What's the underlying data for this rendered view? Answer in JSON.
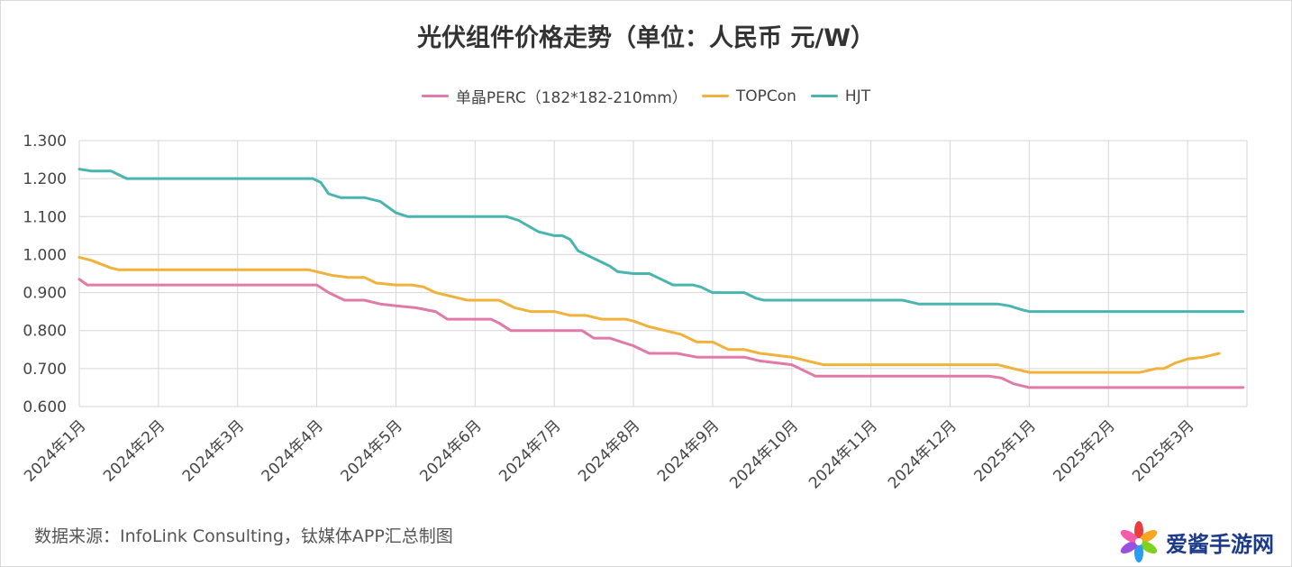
{
  "chart_data": {
    "type": "line",
    "title": "光伏组件价格走势（单位：人民币 元/W）",
    "xlabel": "",
    "ylabel": "",
    "ylim": [
      0.6,
      1.3
    ],
    "yticks": [
      "1.300",
      "1.200",
      "1.100",
      "1.000",
      "0.900",
      "0.800",
      "0.700",
      "0.600"
    ],
    "ytick_values": [
      1.3,
      1.2,
      1.1,
      1.0,
      0.9,
      0.8,
      0.7,
      0.6
    ],
    "categories": [
      "2024年1月",
      "2024年2月",
      "2024年3月",
      "2024年4月",
      "2024年5月",
      "2024年6月",
      "2024年7月",
      "2024年8月",
      "2024年9月",
      "2024年10月",
      "2024年11月",
      "2024年12月",
      "2025年1月",
      "2025年2月",
      "2025年3月"
    ],
    "x_range": [
      0,
      14.75
    ],
    "grid": true,
    "legend_position": "top-center",
    "series": [
      {
        "name": "单晶PERC（182*182-210mm）",
        "color": "#e07aa8",
        "points": [
          [
            0,
            0.935
          ],
          [
            0.1,
            0.92
          ],
          [
            0.3,
            0.92
          ],
          [
            1,
            0.92
          ],
          [
            2,
            0.92
          ],
          [
            2.7,
            0.92
          ],
          [
            3,
            0.92
          ],
          [
            3.15,
            0.9
          ],
          [
            3.35,
            0.88
          ],
          [
            3.6,
            0.88
          ],
          [
            3.8,
            0.87
          ],
          [
            4,
            0.865
          ],
          [
            4.25,
            0.86
          ],
          [
            4.5,
            0.85
          ],
          [
            4.65,
            0.83
          ],
          [
            4.9,
            0.83
          ],
          [
            5,
            0.83
          ],
          [
            5.2,
            0.83
          ],
          [
            5.3,
            0.82
          ],
          [
            5.45,
            0.8
          ],
          [
            6,
            0.8
          ],
          [
            6.35,
            0.8
          ],
          [
            6.5,
            0.78
          ],
          [
            6.7,
            0.78
          ],
          [
            6.85,
            0.77
          ],
          [
            7,
            0.76
          ],
          [
            7.2,
            0.74
          ],
          [
            7.55,
            0.74
          ],
          [
            7.8,
            0.73
          ],
          [
            8,
            0.73
          ],
          [
            8.4,
            0.73
          ],
          [
            8.6,
            0.72
          ],
          [
            9,
            0.71
          ],
          [
            9.3,
            0.68
          ],
          [
            9.5,
            0.68
          ],
          [
            10,
            0.68
          ],
          [
            11,
            0.68
          ],
          [
            11.5,
            0.68
          ],
          [
            11.65,
            0.675
          ],
          [
            11.8,
            0.66
          ],
          [
            12,
            0.65
          ],
          [
            12.2,
            0.65
          ],
          [
            13,
            0.65
          ],
          [
            14,
            0.65
          ],
          [
            14.7,
            0.65
          ]
        ]
      },
      {
        "name": "TOPCon",
        "color": "#f0b23a",
        "points": [
          [
            0,
            0.993
          ],
          [
            0.15,
            0.985
          ],
          [
            0.4,
            0.965
          ],
          [
            0.5,
            0.96
          ],
          [
            1,
            0.96
          ],
          [
            2,
            0.96
          ],
          [
            2.7,
            0.96
          ],
          [
            2.9,
            0.96
          ],
          [
            3,
            0.955
          ],
          [
            3.2,
            0.945
          ],
          [
            3.4,
            0.94
          ],
          [
            3.6,
            0.94
          ],
          [
            3.75,
            0.925
          ],
          [
            4,
            0.92
          ],
          [
            4.2,
            0.92
          ],
          [
            4.35,
            0.915
          ],
          [
            4.5,
            0.9
          ],
          [
            4.9,
            0.88
          ],
          [
            5,
            0.88
          ],
          [
            5.3,
            0.88
          ],
          [
            5.5,
            0.86
          ],
          [
            5.7,
            0.85
          ],
          [
            6,
            0.85
          ],
          [
            6.2,
            0.84
          ],
          [
            6.4,
            0.84
          ],
          [
            6.6,
            0.83
          ],
          [
            6.9,
            0.83
          ],
          [
            7,
            0.825
          ],
          [
            7.2,
            0.81
          ],
          [
            7.4,
            0.8
          ],
          [
            7.6,
            0.79
          ],
          [
            7.8,
            0.77
          ],
          [
            8,
            0.77
          ],
          [
            8.2,
            0.75
          ],
          [
            8.4,
            0.75
          ],
          [
            8.6,
            0.74
          ],
          [
            9,
            0.73
          ],
          [
            9.2,
            0.72
          ],
          [
            9.4,
            0.71
          ],
          [
            10,
            0.71
          ],
          [
            11,
            0.71
          ],
          [
            11.6,
            0.71
          ],
          [
            11.8,
            0.7
          ],
          [
            12,
            0.69
          ],
          [
            13,
            0.69
          ],
          [
            13.4,
            0.69
          ],
          [
            13.5,
            0.695
          ],
          [
            13.6,
            0.7
          ],
          [
            13.7,
            0.7
          ],
          [
            13.85,
            0.715
          ],
          [
            14,
            0.725
          ],
          [
            14.2,
            0.73
          ],
          [
            14.4,
            0.74
          ]
        ]
      },
      {
        "name": "HJT",
        "color": "#4ab5b0",
        "points": [
          [
            0,
            1.225
          ],
          [
            0.15,
            1.22
          ],
          [
            0.4,
            1.22
          ],
          [
            0.6,
            1.2
          ],
          [
            1,
            1.2
          ],
          [
            2,
            1.2
          ],
          [
            2.8,
            1.2
          ],
          [
            2.95,
            1.2
          ],
          [
            3.05,
            1.19
          ],
          [
            3.15,
            1.16
          ],
          [
            3.3,
            1.15
          ],
          [
            3.6,
            1.15
          ],
          [
            3.8,
            1.14
          ],
          [
            4,
            1.11
          ],
          [
            4.15,
            1.1
          ],
          [
            4.5,
            1.1
          ],
          [
            5,
            1.1
          ],
          [
            5.4,
            1.1
          ],
          [
            5.55,
            1.09
          ],
          [
            5.8,
            1.06
          ],
          [
            6,
            1.05
          ],
          [
            6.1,
            1.05
          ],
          [
            6.2,
            1.04
          ],
          [
            6.3,
            1.01
          ],
          [
            6.5,
            0.99
          ],
          [
            6.7,
            0.97
          ],
          [
            6.8,
            0.955
          ],
          [
            7,
            0.95
          ],
          [
            7.2,
            0.95
          ],
          [
            7.3,
            0.94
          ],
          [
            7.5,
            0.92
          ],
          [
            7.75,
            0.92
          ],
          [
            7.85,
            0.915
          ],
          [
            8,
            0.9
          ],
          [
            8.4,
            0.9
          ],
          [
            8.55,
            0.885
          ],
          [
            8.65,
            0.88
          ],
          [
            9,
            0.88
          ],
          [
            10,
            0.88
          ],
          [
            10.4,
            0.88
          ],
          [
            10.5,
            0.875
          ],
          [
            10.6,
            0.87
          ],
          [
            11,
            0.87
          ],
          [
            11.6,
            0.87
          ],
          [
            11.75,
            0.865
          ],
          [
            11.9,
            0.855
          ],
          [
            12,
            0.85
          ],
          [
            12.3,
            0.85
          ],
          [
            13,
            0.85
          ],
          [
            14,
            0.85
          ],
          [
            14.7,
            0.85
          ]
        ]
      }
    ]
  },
  "source_note": "数据来源：InfoLink Consulting，钛媒体APP汇总制图",
  "watermark": {
    "text": "爱酱手游网",
    "petal_colors": [
      "#e83e3e",
      "#f5a623",
      "#7ed321",
      "#2b9cf2",
      "#9b51e0",
      "#f25ca8"
    ]
  }
}
